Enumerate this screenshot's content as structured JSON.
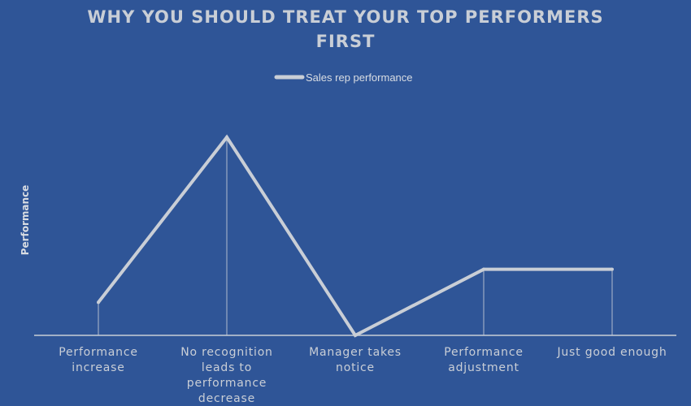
{
  "chart_data": {
    "type": "line",
    "title_lines": [
      "WHY YOU SHOULD TREAT YOUR TOP PERFORMERS",
      "FIRST"
    ],
    "ylabel": "Performance",
    "xlabel": "",
    "legend": {
      "position": "top-center"
    },
    "grid": false,
    "ylim": [
      0,
      6
    ],
    "categories": [
      [
        "Performance",
        "increase"
      ],
      [
        "No recognition",
        "leads to",
        "performance",
        "decrease"
      ],
      [
        "Manager takes",
        "notice"
      ],
      [
        "Performance",
        "adjustment"
      ],
      [
        "Just good enough"
      ]
    ],
    "series": [
      {
        "name": "Sales rep performance",
        "values": [
          1,
          6,
          0,
          2,
          2
        ]
      }
    ],
    "colors": {
      "background": "#2f5597",
      "line": "#c9ced6",
      "text": "#c9ced6"
    }
  }
}
